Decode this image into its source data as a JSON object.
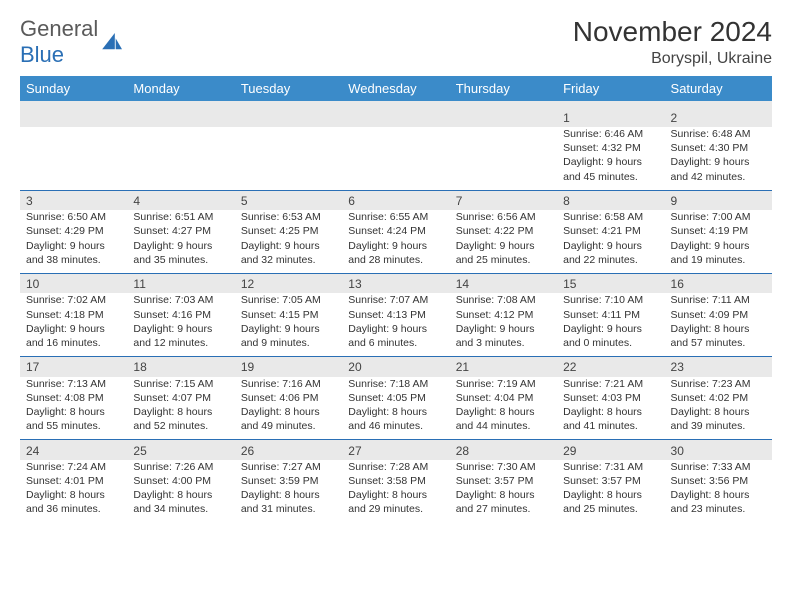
{
  "brand": {
    "part1": "General",
    "part2": "Blue"
  },
  "title": "November 2024",
  "subtitle": "Boryspil, Ukraine",
  "colors": {
    "header_bg": "#3b8bc9",
    "header_text": "#ffffff",
    "daynum_bg": "#e9e9e9",
    "week_border": "#2a6fb5",
    "text": "#333333"
  },
  "day_headers": [
    "Sunday",
    "Monday",
    "Tuesday",
    "Wednesday",
    "Thursday",
    "Friday",
    "Saturday"
  ],
  "weeks": [
    [
      {
        "n": "",
        "sunrise": "",
        "sunset": "",
        "daylight": ""
      },
      {
        "n": "",
        "sunrise": "",
        "sunset": "",
        "daylight": ""
      },
      {
        "n": "",
        "sunrise": "",
        "sunset": "",
        "daylight": ""
      },
      {
        "n": "",
        "sunrise": "",
        "sunset": "",
        "daylight": ""
      },
      {
        "n": "",
        "sunrise": "",
        "sunset": "",
        "daylight": ""
      },
      {
        "n": "1",
        "sunrise": "Sunrise: 6:46 AM",
        "sunset": "Sunset: 4:32 PM",
        "daylight": "Daylight: 9 hours and 45 minutes."
      },
      {
        "n": "2",
        "sunrise": "Sunrise: 6:48 AM",
        "sunset": "Sunset: 4:30 PM",
        "daylight": "Daylight: 9 hours and 42 minutes."
      }
    ],
    [
      {
        "n": "3",
        "sunrise": "Sunrise: 6:50 AM",
        "sunset": "Sunset: 4:29 PM",
        "daylight": "Daylight: 9 hours and 38 minutes."
      },
      {
        "n": "4",
        "sunrise": "Sunrise: 6:51 AM",
        "sunset": "Sunset: 4:27 PM",
        "daylight": "Daylight: 9 hours and 35 minutes."
      },
      {
        "n": "5",
        "sunrise": "Sunrise: 6:53 AM",
        "sunset": "Sunset: 4:25 PM",
        "daylight": "Daylight: 9 hours and 32 minutes."
      },
      {
        "n": "6",
        "sunrise": "Sunrise: 6:55 AM",
        "sunset": "Sunset: 4:24 PM",
        "daylight": "Daylight: 9 hours and 28 minutes."
      },
      {
        "n": "7",
        "sunrise": "Sunrise: 6:56 AM",
        "sunset": "Sunset: 4:22 PM",
        "daylight": "Daylight: 9 hours and 25 minutes."
      },
      {
        "n": "8",
        "sunrise": "Sunrise: 6:58 AM",
        "sunset": "Sunset: 4:21 PM",
        "daylight": "Daylight: 9 hours and 22 minutes."
      },
      {
        "n": "9",
        "sunrise": "Sunrise: 7:00 AM",
        "sunset": "Sunset: 4:19 PM",
        "daylight": "Daylight: 9 hours and 19 minutes."
      }
    ],
    [
      {
        "n": "10",
        "sunrise": "Sunrise: 7:02 AM",
        "sunset": "Sunset: 4:18 PM",
        "daylight": "Daylight: 9 hours and 16 minutes."
      },
      {
        "n": "11",
        "sunrise": "Sunrise: 7:03 AM",
        "sunset": "Sunset: 4:16 PM",
        "daylight": "Daylight: 9 hours and 12 minutes."
      },
      {
        "n": "12",
        "sunrise": "Sunrise: 7:05 AM",
        "sunset": "Sunset: 4:15 PM",
        "daylight": "Daylight: 9 hours and 9 minutes."
      },
      {
        "n": "13",
        "sunrise": "Sunrise: 7:07 AM",
        "sunset": "Sunset: 4:13 PM",
        "daylight": "Daylight: 9 hours and 6 minutes."
      },
      {
        "n": "14",
        "sunrise": "Sunrise: 7:08 AM",
        "sunset": "Sunset: 4:12 PM",
        "daylight": "Daylight: 9 hours and 3 minutes."
      },
      {
        "n": "15",
        "sunrise": "Sunrise: 7:10 AM",
        "sunset": "Sunset: 4:11 PM",
        "daylight": "Daylight: 9 hours and 0 minutes."
      },
      {
        "n": "16",
        "sunrise": "Sunrise: 7:11 AM",
        "sunset": "Sunset: 4:09 PM",
        "daylight": "Daylight: 8 hours and 57 minutes."
      }
    ],
    [
      {
        "n": "17",
        "sunrise": "Sunrise: 7:13 AM",
        "sunset": "Sunset: 4:08 PM",
        "daylight": "Daylight: 8 hours and 55 minutes."
      },
      {
        "n": "18",
        "sunrise": "Sunrise: 7:15 AM",
        "sunset": "Sunset: 4:07 PM",
        "daylight": "Daylight: 8 hours and 52 minutes."
      },
      {
        "n": "19",
        "sunrise": "Sunrise: 7:16 AM",
        "sunset": "Sunset: 4:06 PM",
        "daylight": "Daylight: 8 hours and 49 minutes."
      },
      {
        "n": "20",
        "sunrise": "Sunrise: 7:18 AM",
        "sunset": "Sunset: 4:05 PM",
        "daylight": "Daylight: 8 hours and 46 minutes."
      },
      {
        "n": "21",
        "sunrise": "Sunrise: 7:19 AM",
        "sunset": "Sunset: 4:04 PM",
        "daylight": "Daylight: 8 hours and 44 minutes."
      },
      {
        "n": "22",
        "sunrise": "Sunrise: 7:21 AM",
        "sunset": "Sunset: 4:03 PM",
        "daylight": "Daylight: 8 hours and 41 minutes."
      },
      {
        "n": "23",
        "sunrise": "Sunrise: 7:23 AM",
        "sunset": "Sunset: 4:02 PM",
        "daylight": "Daylight: 8 hours and 39 minutes."
      }
    ],
    [
      {
        "n": "24",
        "sunrise": "Sunrise: 7:24 AM",
        "sunset": "Sunset: 4:01 PM",
        "daylight": "Daylight: 8 hours and 36 minutes."
      },
      {
        "n": "25",
        "sunrise": "Sunrise: 7:26 AM",
        "sunset": "Sunset: 4:00 PM",
        "daylight": "Daylight: 8 hours and 34 minutes."
      },
      {
        "n": "26",
        "sunrise": "Sunrise: 7:27 AM",
        "sunset": "Sunset: 3:59 PM",
        "daylight": "Daylight: 8 hours and 31 minutes."
      },
      {
        "n": "27",
        "sunrise": "Sunrise: 7:28 AM",
        "sunset": "Sunset: 3:58 PM",
        "daylight": "Daylight: 8 hours and 29 minutes."
      },
      {
        "n": "28",
        "sunrise": "Sunrise: 7:30 AM",
        "sunset": "Sunset: 3:57 PM",
        "daylight": "Daylight: 8 hours and 27 minutes."
      },
      {
        "n": "29",
        "sunrise": "Sunrise: 7:31 AM",
        "sunset": "Sunset: 3:57 PM",
        "daylight": "Daylight: 8 hours and 25 minutes."
      },
      {
        "n": "30",
        "sunrise": "Sunrise: 7:33 AM",
        "sunset": "Sunset: 3:56 PM",
        "daylight": "Daylight: 8 hours and 23 minutes."
      }
    ]
  ]
}
